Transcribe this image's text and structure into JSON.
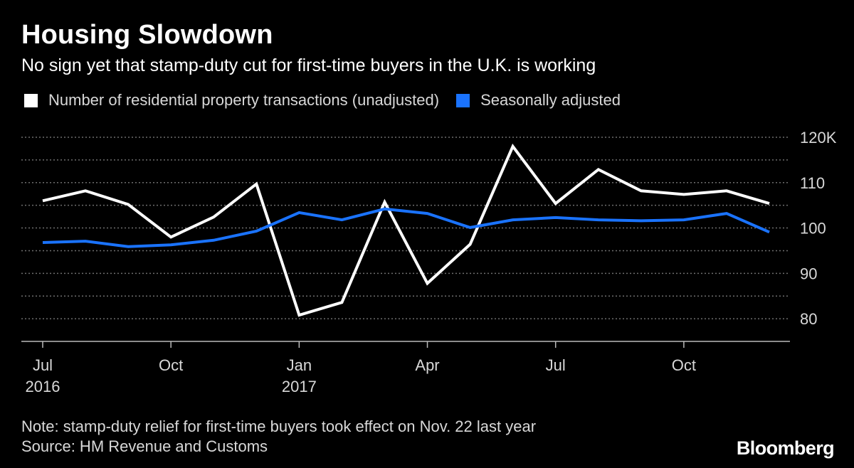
{
  "title": "Housing Slowdown",
  "subtitle": "No sign yet that stamp-duty cut for first-time buyers in the U.K. is working",
  "note": "Note: stamp-duty relief for first-time buyers took effect on Nov. 22 last year",
  "source": "Source: HM Revenue and Customs",
  "brand": "Bloomberg",
  "colors": {
    "background": "#000000",
    "unadjusted": "#ffffff",
    "adjusted": "#1a73ff",
    "grid": "#6e6e6e",
    "text": "#d8d8d8"
  },
  "chart_data": {
    "type": "line",
    "x": [
      "2016-07",
      "2016-08",
      "2016-09",
      "2016-10",
      "2016-11",
      "2016-12",
      "2017-01",
      "2017-02",
      "2017-03",
      "2017-04",
      "2017-05",
      "2017-06",
      "2017-07",
      "2017-08",
      "2017-09",
      "2017-10",
      "2017-11",
      "2017-12"
    ],
    "series": [
      {
        "name": "Number of residential property transactions (unadjusted)",
        "color": "#ffffff",
        "values": [
          106,
          108.2,
          105.2,
          98,
          102.4,
          109.7,
          80.8,
          83.6,
          105.7,
          87.8,
          96.4,
          118,
          105.4,
          112.9,
          108.2,
          107.4,
          108.2,
          105.4
        ]
      },
      {
        "name": "Seasonally adjusted",
        "color": "#1a73ff",
        "values": [
          96.8,
          97.1,
          95.9,
          96.3,
          97.3,
          99.3,
          103.4,
          101.8,
          104.2,
          103.2,
          100.1,
          101.8,
          102.3,
          101.8,
          101.6,
          101.8,
          103.2,
          99.1
        ]
      }
    ],
    "tick_labels": [
      {
        "x": "2016-07",
        "label": "Jul",
        "sublabel": "2016"
      },
      {
        "x": "2016-10",
        "label": "Oct",
        "sublabel": ""
      },
      {
        "x": "2017-01",
        "label": "Jan",
        "sublabel": "2017"
      },
      {
        "x": "2017-04",
        "label": "Apr",
        "sublabel": ""
      },
      {
        "x": "2017-07",
        "label": "Jul",
        "sublabel": ""
      },
      {
        "x": "2017-10",
        "label": "Oct",
        "sublabel": ""
      }
    ],
    "y_ticks": [
      {
        "value": 80,
        "label": "80"
      },
      {
        "value": 90,
        "label": "90"
      },
      {
        "value": 100,
        "label": "100"
      },
      {
        "value": 110,
        "label": "110"
      },
      {
        "value": 120,
        "label": "120K"
      }
    ],
    "gridlines": [
      80,
      85,
      90,
      95,
      100,
      105,
      110,
      115,
      120
    ],
    "ylim": [
      75,
      120
    ],
    "grid": true,
    "y_axis_position": "right",
    "legend_position": "top-left"
  }
}
